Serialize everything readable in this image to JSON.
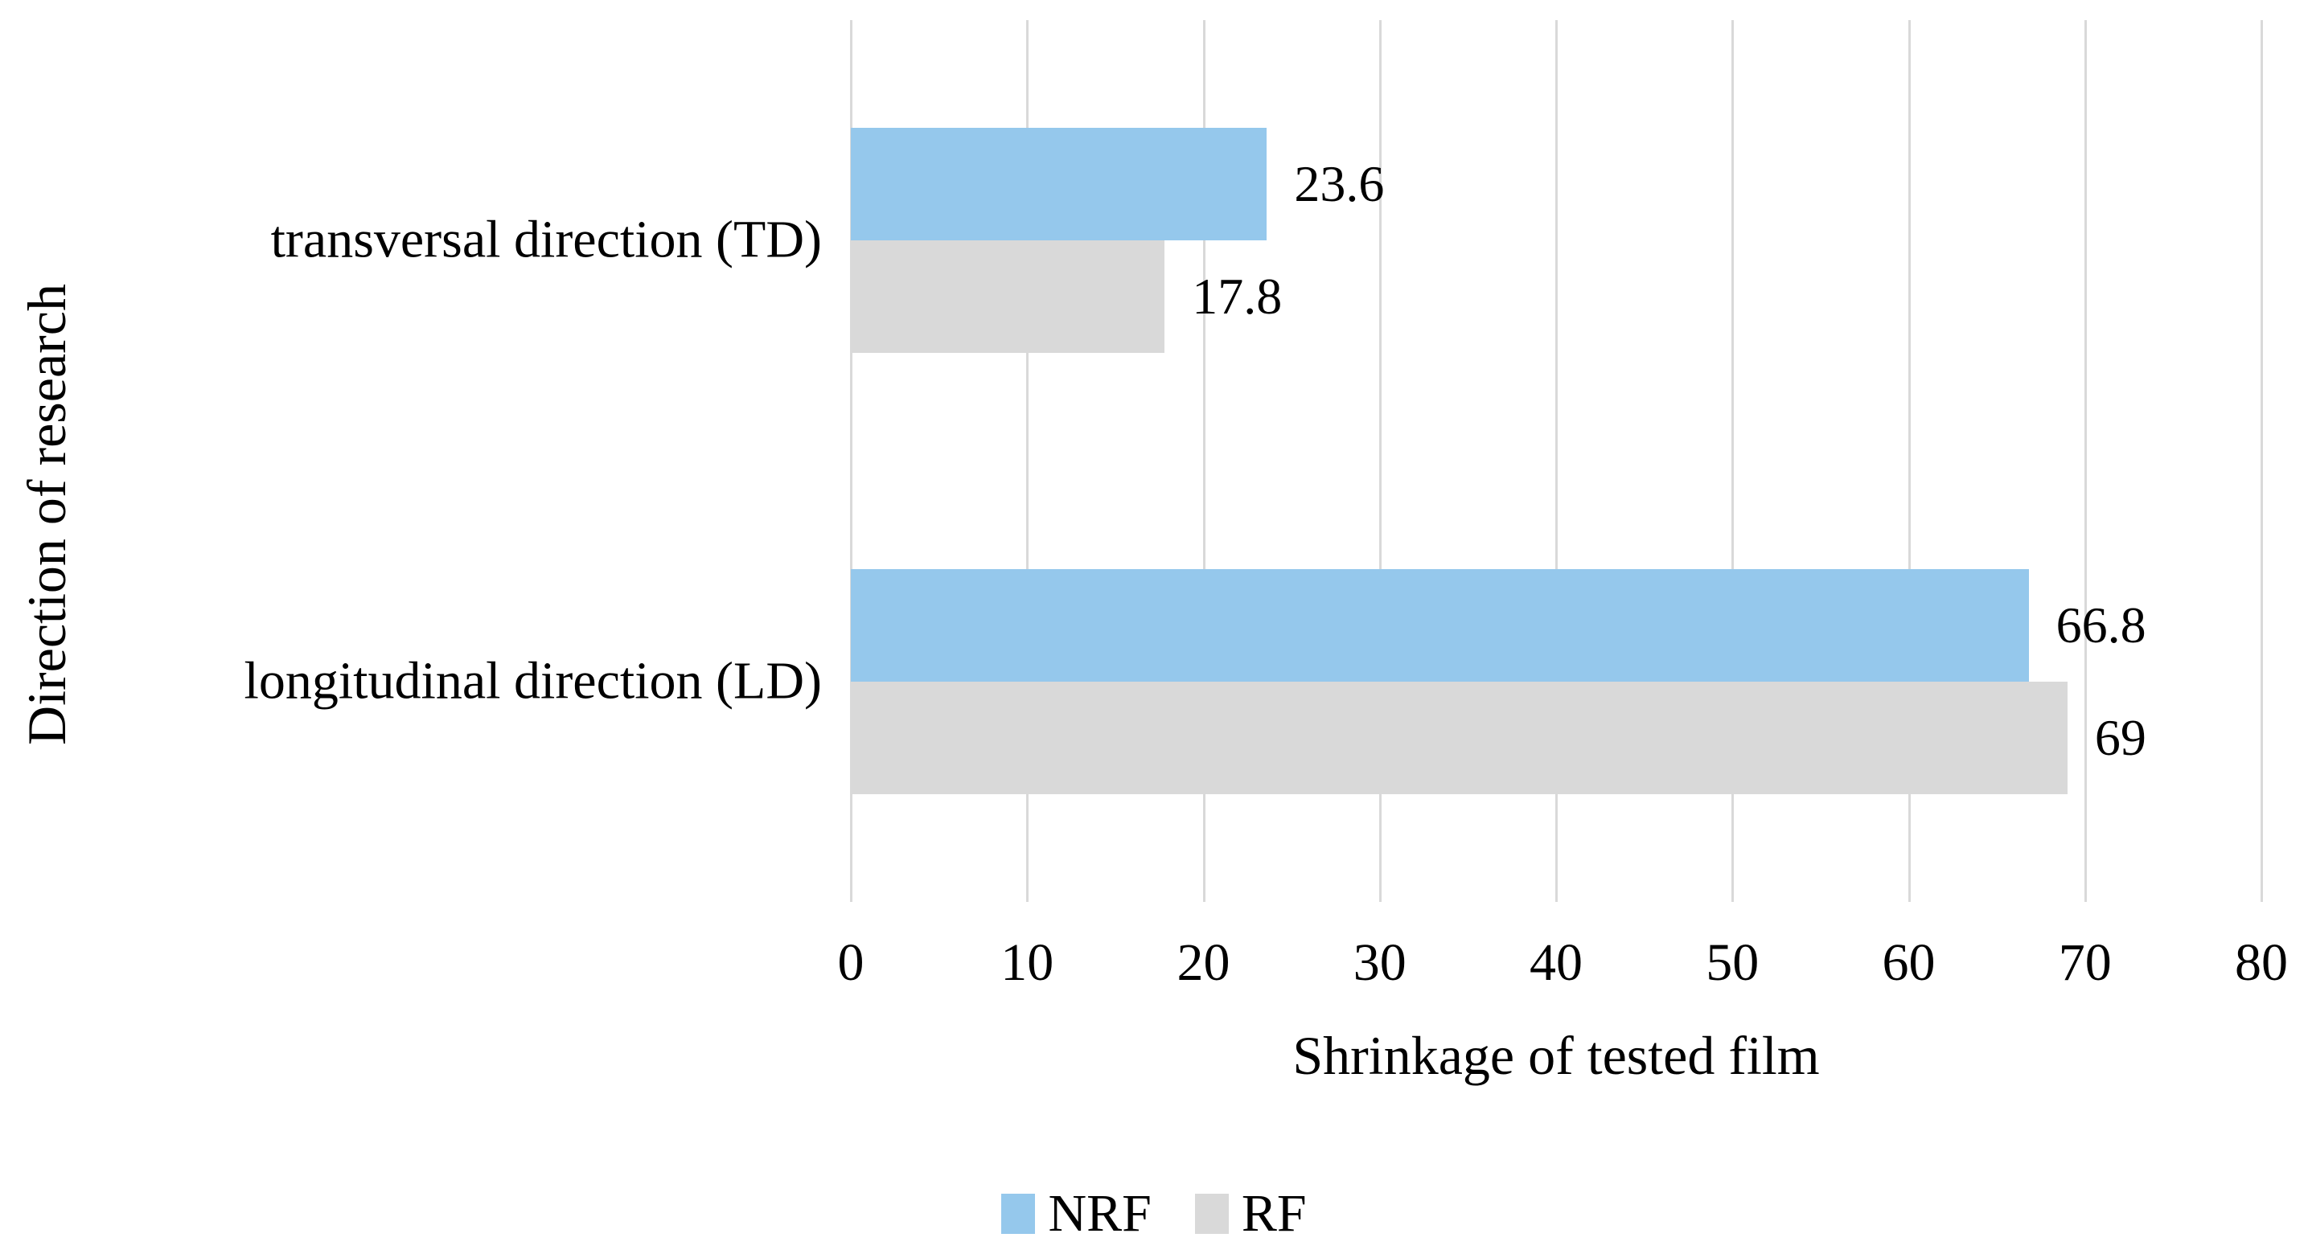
{
  "figure": {
    "background_color": "#FFFFFF",
    "text_color": "#000000"
  },
  "chart_data": {
    "type": "bar",
    "orientation": "horizontal",
    "xlabel": "Shrinkage of tested film",
    "ylabel": "Direction of research",
    "categories": [
      "transversal direction (TD)",
      "longitudinal direction (LD)"
    ],
    "series": [
      {
        "name": "NRF",
        "color": "#95C8EC",
        "values": [
          23.6,
          66.8
        ],
        "labels": [
          "23.6",
          "66.8"
        ]
      },
      {
        "name": "RF",
        "color": "#D9D9D9",
        "values": [
          17.8,
          69
        ],
        "labels": [
          "17.8",
          "69"
        ]
      }
    ],
    "xlim": [
      0,
      80
    ],
    "xticks": [
      0,
      10,
      20,
      30,
      40,
      50,
      60,
      70,
      80
    ],
    "grid": true,
    "gridline_color": "#D9D9D9",
    "legend_position": "bottom"
  }
}
